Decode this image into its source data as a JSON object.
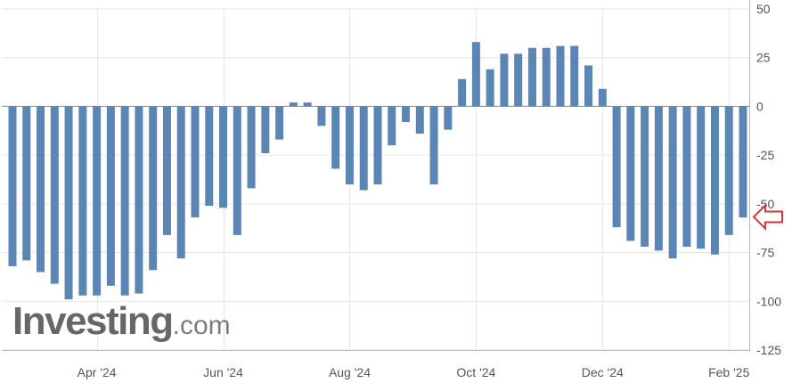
{
  "chart_data": {
    "type": "bar",
    "title": "",
    "xlabel": "",
    "ylabel": "",
    "ylim": [
      -125,
      50
    ],
    "y_ticks": [
      50,
      25,
      0,
      -25,
      -50,
      -75,
      -100,
      -125
    ],
    "y_tick_labels": [
      "50",
      "25",
      "0",
      "-25",
      "-50",
      "-75",
      "-100",
      "-125"
    ],
    "x_tick_labels": [
      "Apr '24",
      "Jun '24",
      "Aug '24",
      "Oct '24",
      "Dec '24",
      "Feb '25"
    ],
    "x_tick_bar_index": [
      6,
      15,
      24,
      33,
      42,
      51
    ],
    "grid": true,
    "bar_color": "#5b85b5",
    "marker_color": "#d9343a",
    "latest_value": -56.7,
    "values": [
      -82,
      -79,
      -85,
      -91,
      -99,
      -97,
      -97,
      -92,
      -97,
      -96,
      -84,
      -66,
      -78,
      -57,
      -51,
      -52,
      -66,
      -42,
      -24,
      -17,
      2,
      2,
      -10,
      -32,
      -40,
      -43,
      -40,
      -20,
      -8,
      -14,
      -40,
      -12,
      14,
      33,
      19,
      27,
      27,
      30,
      30,
      31,
      31,
      21,
      9,
      -62,
      -69,
      -72,
      -74,
      -78,
      -72,
      -73,
      -76,
      -66,
      -57
    ]
  },
  "watermark": {
    "brand": "Investing",
    "suffix": ".com"
  }
}
